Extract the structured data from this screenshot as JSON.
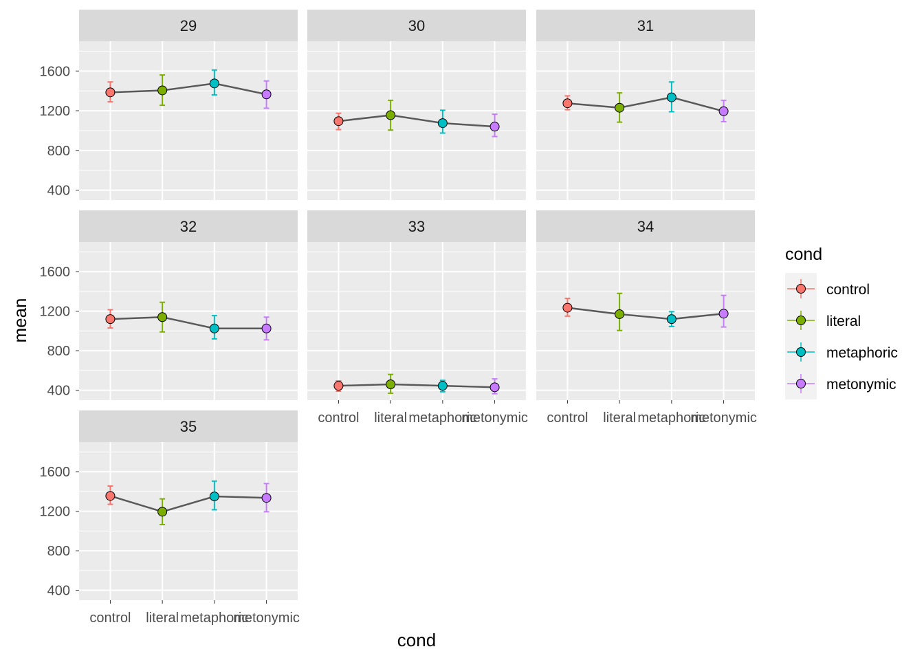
{
  "chart_data": {
    "type": "line",
    "xlabel": "cond",
    "ylabel": "mean",
    "ylim": [
      300,
      1900
    ],
    "yticks": [
      400,
      800,
      1200,
      1600
    ],
    "categories": [
      "control",
      "literal",
      "metaphoric",
      "metonymic"
    ],
    "legend": {
      "title": "cond",
      "position": "right",
      "items": [
        {
          "label": "control",
          "color": "#F8766D"
        },
        {
          "label": "literal",
          "color": "#7CAE00"
        },
        {
          "label": "metaphoric",
          "color": "#00BFC4"
        },
        {
          "label": "metonymic",
          "color": "#C77CFF"
        }
      ]
    },
    "facets": [
      {
        "label": "29",
        "mean": [
          1385,
          1405,
          1475,
          1365
        ],
        "lower": [
          1290,
          1255,
          1360,
          1225
        ],
        "upper": [
          1490,
          1560,
          1610,
          1500
        ]
      },
      {
        "label": "30",
        "mean": [
          1095,
          1155,
          1075,
          1040
        ],
        "lower": [
          1010,
          1005,
          975,
          940
        ],
        "upper": [
          1175,
          1305,
          1205,
          1165
        ]
      },
      {
        "label": "31",
        "mean": [
          1275,
          1230,
          1335,
          1195
        ],
        "lower": [
          1210,
          1085,
          1190,
          1090
        ],
        "upper": [
          1350,
          1380,
          1490,
          1305
        ]
      },
      {
        "label": "32",
        "mean": [
          1120,
          1140,
          1025,
          1025
        ],
        "lower": [
          1030,
          990,
          920,
          910
        ],
        "upper": [
          1215,
          1290,
          1155,
          1140
        ]
      },
      {
        "label": "33",
        "mean": [
          445,
          460,
          445,
          430
        ],
        "lower": [
          390,
          370,
          385,
          365
        ],
        "upper": [
          495,
          560,
          500,
          515
        ]
      },
      {
        "label": "34",
        "mean": [
          1235,
          1170,
          1120,
          1175
        ],
        "lower": [
          1150,
          1005,
          1045,
          1040
        ],
        "upper": [
          1330,
          1380,
          1195,
          1360
        ]
      },
      {
        "label": "35",
        "mean": [
          1355,
          1195,
          1350,
          1335
        ],
        "lower": [
          1270,
          1065,
          1215,
          1195
        ],
        "upper": [
          1455,
          1325,
          1505,
          1480
        ]
      }
    ]
  }
}
